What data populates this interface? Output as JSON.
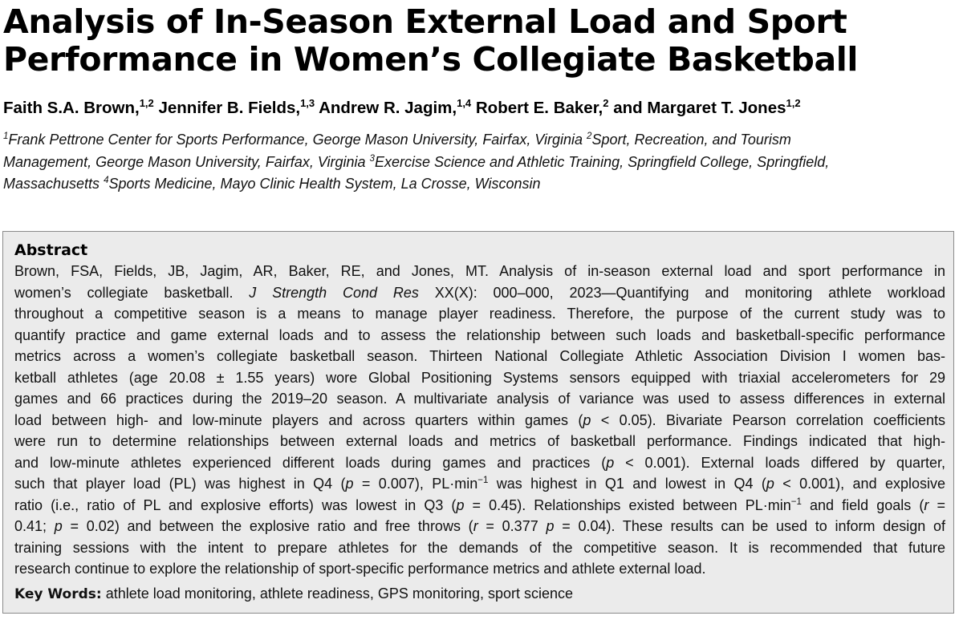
{
  "title": {
    "line1": "Analysis of In-Season External Load and Sport",
    "line2": "Performance in Women’s Collegiate Basketball"
  },
  "authors": [
    {
      "name": "Faith S.A. Brown,",
      "sup": "1,2"
    },
    {
      "name": "Jennifer B. Fields,",
      "sup": "1,3"
    },
    {
      "name": "Andrew R. Jagim,",
      "sup": "1,4"
    },
    {
      "name": "Robert E. Baker,",
      "sup": "2"
    },
    {
      "name": "and Margaret T. Jones",
      "sup": "1,2"
    }
  ],
  "affiliations": {
    "l1_s1": "1",
    "l1_t1": "Frank Pettrone Center for Sports Performance, George Mason University, Fairfax, Virginia ",
    "l1_s2": "2",
    "l1_t2": "Sport, Recreation, and Tourism",
    "l2_t1": "Management, George Mason University, Fairfax, Virginia ",
    "l2_s1": "3",
    "l2_t2": "Exercise Science and Athletic Training, Springfield College, Springfield,",
    "l3_t1": "Massachusetts ",
    "l3_s1": "4",
    "l3_t2": "Sports Medicine, Mayo Clinic Health System, La Crosse, Wisconsin"
  },
  "abstract": {
    "heading": "Abstract",
    "l1": "Brown, FSA, Fields, JB, Jagim, AR, Baker, RE, and Jones, MT. Analysis of in-season external load and sport performance in",
    "l2_a": "women’s collegiate basketball. ",
    "l2_journal": "J Strength Cond Res",
    "l2_b": " XX(X): 000–000, 2023—Quantifying and monitoring athlete workload",
    "l3": "throughout a competitive season is a means to manage player readiness. Therefore, the purpose of the current study was to",
    "l4": "quantify practice and game external loads and to assess the relationship between such loads and basketball-specific performance",
    "l5": "metrics across a women’s collegiate basketball season. Thirteen National Collegiate Athletic Association Division I women bas-",
    "l6": "ketball athletes (age 20.08 ± 1.55 years) wore Global Positioning Systems sensors equipped with triaxial accelerometers for 29",
    "l7": "games and 66 practices during the 2019–20 season. A multivariate analysis of variance was used to assess differences in external",
    "l8_a": "load between high- and low-minute players and across quarters within games (",
    "l8_p": "p",
    "l8_b": " < 0.05). Bivariate Pearson correlation coefficients",
    "l9": "were run to determine relationships between external loads and metrics of basketball performance. Findings indicated that high-",
    "l10_a": "and low-minute athletes experienced different loads during games and practices (",
    "l10_p": "p",
    "l10_b": " < 0.001). External loads differed by quarter,",
    "l11_a": "such that player load (PL) was highest in Q4 (",
    "l11_p1": "p",
    "l11_b": " = 0.007), PL·min",
    "l11_sup": "−1",
    "l11_c": " was highest in Q1 and lowest in Q4 (",
    "l11_p2": "p",
    "l11_d": " < 0.001), and explosive",
    "l12_a": "ratio (i.e., ratio of PL and explosive efforts) was lowest in Q3 (",
    "l12_p": "p",
    "l12_b": " = 0.45). Relationships existed between PL·min",
    "l12_sup": "−1",
    "l12_c": " and field goals (",
    "l12_r": "r",
    "l12_d": " =",
    "l13_a": "0.41; ",
    "l13_p1": "p",
    "l13_b": " = 0.02) and between the explosive ratio and free throws (",
    "l13_r": "r",
    "l13_c": " = 0.377 ",
    "l13_p2": "p",
    "l13_d": " = 0.04). These results can be used to inform design of",
    "l14": "training sessions with the intent to prepare athletes for the demands of the competitive season. It is recommended that future",
    "l15": "research continue to explore the relationship of sport-specific performance metrics and athlete external load."
  },
  "keywords": {
    "label": "Key Words:",
    "text": " athlete load monitoring, athlete readiness, GPS monitoring, sport science"
  }
}
